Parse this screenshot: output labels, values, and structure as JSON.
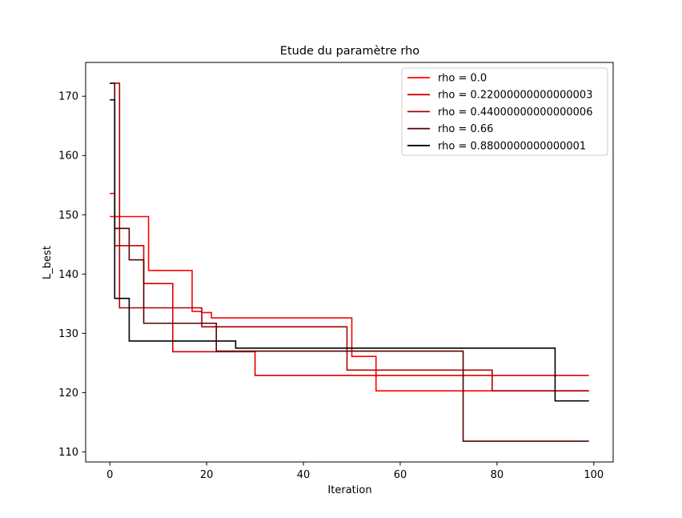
{
  "chart_data": {
    "type": "line",
    "title": "Etude du paramètre rho",
    "xlabel": "Iteration",
    "ylabel": "L_best",
    "xlim": [
      -5,
      104
    ],
    "ylim": [
      108.3,
      175.7
    ],
    "xticks": [
      0,
      20,
      40,
      60,
      80,
      100
    ],
    "yticks": [
      110,
      120,
      130,
      140,
      150,
      160,
      170
    ],
    "grid": false,
    "legend_position": "top-right",
    "step": "post",
    "x_max": 99,
    "series": [
      {
        "name": "rho = 0.0",
        "color": "#ff0000",
        "points": [
          [
            0,
            149.7
          ],
          [
            8,
            140.6
          ],
          [
            17,
            133.7
          ],
          [
            19,
            133.5
          ],
          [
            21,
            132.6
          ],
          [
            50,
            126.1
          ],
          [
            53,
            126.1
          ],
          [
            55,
            120.3
          ],
          [
            99,
            120.3
          ]
        ]
      },
      {
        "name": "rho = 0.22000000000000003",
        "color": "#d60000",
        "points": [
          [
            0,
            153.6
          ],
          [
            1,
            144.8
          ],
          [
            7,
            138.4
          ],
          [
            13,
            126.9
          ],
          [
            30,
            122.9
          ],
          [
            99,
            122.9
          ]
        ]
      },
      {
        "name": "rho = 0.44000000000000006",
        "color": "#ad0000",
        "points": [
          [
            0,
            172.2
          ],
          [
            2,
            134.3
          ],
          [
            19,
            131.1
          ],
          [
            49,
            123.8
          ],
          [
            59,
            123.8
          ],
          [
            79,
            120.3
          ],
          [
            99,
            120.3
          ]
        ]
      },
      {
        "name": "rho = 0.66",
        "color": "#5a0000",
        "points": [
          [
            0,
            172.2
          ],
          [
            1,
            147.7
          ],
          [
            4,
            142.4
          ],
          [
            7,
            131.7
          ],
          [
            22,
            127.0
          ],
          [
            73,
            111.8
          ],
          [
            99,
            111.8
          ]
        ]
      },
      {
        "name": "rho = 0.8800000000000001",
        "color": "#000000",
        "points": [
          [
            0,
            169.4
          ],
          [
            1,
            135.9
          ],
          [
            4,
            128.7
          ],
          [
            26,
            127.5
          ],
          [
            92,
            118.6
          ],
          [
            99,
            118.6
          ]
        ]
      }
    ]
  }
}
